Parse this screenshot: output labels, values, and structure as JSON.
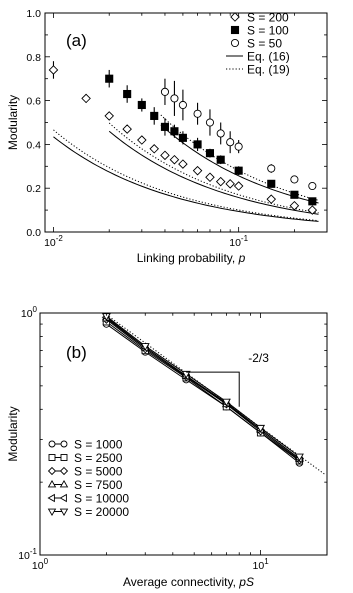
{
  "chart_data": [
    {
      "panel_label": "(a)",
      "type": "scatter",
      "xscale": "log",
      "xlabel": "Linking probability, p",
      "ylabel": "Modularity",
      "xlim": [
        0.009,
        0.3
      ],
      "ylim": [
        0.0,
        1.0
      ],
      "x_ticks": [
        {
          "v": 0.01,
          "label": "10⁻²"
        },
        {
          "v": 0.1,
          "label": "10⁻¹"
        }
      ],
      "y_ticks": [
        "0.0",
        "0.2",
        "0.4",
        "0.6",
        "0.8",
        "1.0"
      ],
      "legend_position": "top-right",
      "series": [
        {
          "name": "S = 200",
          "marker": "diamond-open",
          "x": [
            0.01,
            0.015,
            0.02,
            0.025,
            0.03,
            0.035,
            0.04,
            0.045,
            0.05,
            0.06,
            0.07,
            0.08,
            0.09,
            0.1,
            0.15,
            0.2,
            0.25
          ],
          "y": [
            0.74,
            0.61,
            0.53,
            0.47,
            0.42,
            0.38,
            0.35,
            0.33,
            0.31,
            0.28,
            0.25,
            0.23,
            0.22,
            0.21,
            0.15,
            0.12,
            0.1
          ],
          "err": [
            0.04,
            0.02,
            0.01,
            0.01,
            0.01,
            0.01,
            0.01,
            0.01,
            0.01,
            0.01,
            0.01,
            0.01,
            0.01,
            0.01,
            0.01,
            0.01,
            0.01
          ]
        },
        {
          "name": "S = 100",
          "marker": "square-filled",
          "x": [
            0.02,
            0.025,
            0.03,
            0.035,
            0.04,
            0.045,
            0.05,
            0.06,
            0.07,
            0.08,
            0.1,
            0.15,
            0.2,
            0.25
          ],
          "y": [
            0.7,
            0.63,
            0.58,
            0.53,
            0.48,
            0.46,
            0.43,
            0.4,
            0.36,
            0.33,
            0.28,
            0.22,
            0.17,
            0.14
          ],
          "err": [
            0.04,
            0.04,
            0.03,
            0.04,
            0.04,
            0.03,
            0.03,
            0.03,
            0.02,
            0.02,
            0.02,
            0.01,
            0.01,
            0.01
          ]
        },
        {
          "name": "S = 50",
          "marker": "circle-open",
          "x": [
            0.04,
            0.045,
            0.05,
            0.06,
            0.07,
            0.08,
            0.09,
            0.1,
            0.15,
            0.2,
            0.25
          ],
          "y": [
            0.64,
            0.61,
            0.58,
            0.54,
            0.5,
            0.45,
            0.41,
            0.39,
            0.29,
            0.24,
            0.21
          ],
          "err": [
            0.06,
            0.08,
            0.07,
            0.05,
            0.06,
            0.05,
            0.05,
            0.03,
            0.02,
            0.01,
            0.01
          ]
        }
      ],
      "lines": [
        {
          "name": "Eq. (16)",
          "style": "solid"
        },
        {
          "name": "Eq. (19)",
          "style": "dotted"
        }
      ]
    },
    {
      "panel_label": "(b)",
      "type": "line",
      "xscale": "log",
      "yscale": "log",
      "xlabel": "Average connectivity, pS",
      "ylabel": "Modularity",
      "xlim": [
        1,
        20
      ],
      "ylim": [
        0.1,
        1.0
      ],
      "x_ticks": [
        {
          "v": 1,
          "label": "10⁰"
        },
        {
          "v": 10,
          "label": "10¹"
        }
      ],
      "y_ticks": [
        {
          "v": 0.1,
          "label": "10⁻¹"
        },
        {
          "v": 1,
          "label": "10⁰"
        }
      ],
      "annotation": "-2/3",
      "legend_position": "bottom-left",
      "x": [
        2,
        3,
        4.6,
        7,
        10,
        15
      ],
      "series": [
        {
          "name": "S = 1000",
          "marker": "circle-open",
          "y": [
            0.9,
            0.69,
            0.53,
            0.41,
            0.32,
            0.24
          ]
        },
        {
          "name": "S = 2500",
          "marker": "square-open",
          "y": [
            0.92,
            0.7,
            0.54,
            0.41,
            0.32,
            0.245
          ]
        },
        {
          "name": "S = 5000",
          "marker": "diamond-open",
          "y": [
            0.94,
            0.71,
            0.545,
            0.42,
            0.325,
            0.247
          ]
        },
        {
          "name": "S = 7500",
          "marker": "triangle-up-open",
          "y": [
            0.95,
            0.72,
            0.55,
            0.42,
            0.33,
            0.25
          ]
        },
        {
          "name": "S = 10000",
          "marker": "triangle-left-open",
          "y": [
            0.96,
            0.72,
            0.55,
            0.425,
            0.33,
            0.25
          ]
        },
        {
          "name": "S = 20000",
          "marker": "triangle-down-open",
          "y": [
            0.97,
            0.73,
            0.56,
            0.43,
            0.335,
            0.255
          ]
        }
      ]
    }
  ]
}
